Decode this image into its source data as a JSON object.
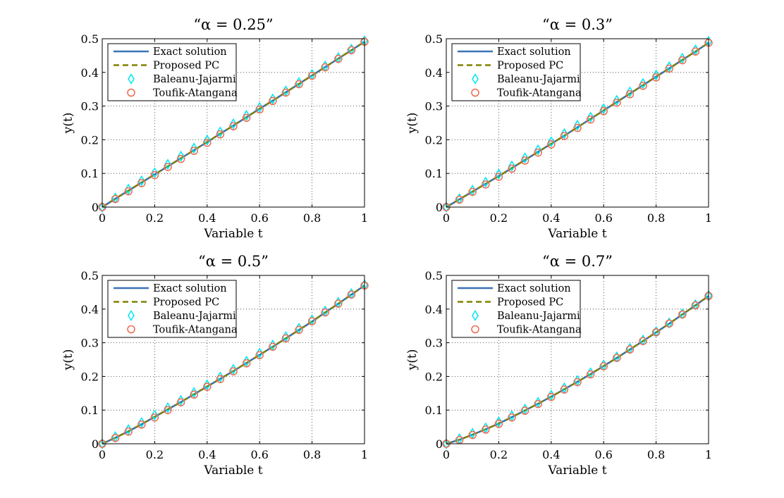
{
  "figure": {
    "legend_entries": [
      "Exact solution",
      "Proposed PC",
      "Baleanu-Jajarmi",
      "Toufik-Atangana"
    ],
    "colors": {
      "exact": "#3b72b6",
      "proposed": "#808000",
      "baleanu": "#00e5ee",
      "toufik": "#ee6a50"
    }
  },
  "chart_data": [
    {
      "type": "line",
      "title": "“α = 0.25”",
      "xlabel": "Variable t",
      "ylabel": "y(t)",
      "xlim": [
        0,
        1
      ],
      "ylim": [
        0,
        0.5
      ],
      "xticks": [
        "0",
        "0.2",
        "0.4",
        "0.6",
        "0.8",
        "1"
      ],
      "yticks": [
        "0",
        "0.1",
        "0.2",
        "0.3",
        "0.4",
        "0.5"
      ],
      "grid": true,
      "legend_position": "top-left",
      "x": [
        0,
        0.05,
        0.1,
        0.15,
        0.2,
        0.25,
        0.3,
        0.35,
        0.4,
        0.45,
        0.5,
        0.55,
        0.6,
        0.65,
        0.7,
        0.75,
        0.8,
        0.85,
        0.9,
        0.95,
        1.0
      ],
      "series": [
        {
          "name": "Exact solution",
          "values": [
            0,
            0.025,
            0.049,
            0.073,
            0.097,
            0.121,
            0.145,
            0.169,
            0.193,
            0.218,
            0.242,
            0.267,
            0.292,
            0.316,
            0.341,
            0.366,
            0.391,
            0.416,
            0.441,
            0.466,
            0.491
          ]
        },
        {
          "name": "Proposed PC",
          "values": [
            0,
            0.025,
            0.049,
            0.073,
            0.097,
            0.121,
            0.145,
            0.169,
            0.193,
            0.218,
            0.242,
            0.267,
            0.292,
            0.316,
            0.341,
            0.366,
            0.391,
            0.416,
            0.441,
            0.466,
            0.491
          ]
        },
        {
          "name": "Baleanu-Jajarmi",
          "values": [
            0,
            0.027,
            0.053,
            0.078,
            0.102,
            0.127,
            0.151,
            0.175,
            0.199,
            0.223,
            0.247,
            0.272,
            0.296,
            0.321,
            0.345,
            0.37,
            0.394,
            0.419,
            0.444,
            0.469,
            0.494
          ]
        },
        {
          "name": "Toufik-Atangana",
          "values": [
            0,
            0.024,
            0.047,
            0.071,
            0.095,
            0.119,
            0.143,
            0.167,
            0.191,
            0.216,
            0.24,
            0.265,
            0.29,
            0.315,
            0.34,
            0.365,
            0.39,
            0.415,
            0.44,
            0.466,
            0.491
          ]
        }
      ]
    },
    {
      "type": "line",
      "title": "“α = 0.3”",
      "xlabel": "Variable t",
      "ylabel": "y(t)",
      "xlim": [
        0,
        1
      ],
      "ylim": [
        0,
        0.5
      ],
      "xticks": [
        "0",
        "0.2",
        "0.4",
        "0.6",
        "0.8",
        "1"
      ],
      "yticks": [
        "0",
        "0.1",
        "0.2",
        "0.3",
        "0.4",
        "0.5"
      ],
      "grid": true,
      "legend_position": "top-left",
      "x": [
        0,
        0.05,
        0.1,
        0.15,
        0.2,
        0.25,
        0.3,
        0.35,
        0.4,
        0.45,
        0.5,
        0.55,
        0.6,
        0.65,
        0.7,
        0.75,
        0.8,
        0.85,
        0.9,
        0.95,
        1.0
      ],
      "series": [
        {
          "name": "Exact solution",
          "values": [
            0,
            0.023,
            0.046,
            0.069,
            0.092,
            0.116,
            0.14,
            0.164,
            0.188,
            0.212,
            0.237,
            0.262,
            0.287,
            0.312,
            0.337,
            0.362,
            0.387,
            0.412,
            0.437,
            0.462,
            0.488
          ]
        },
        {
          "name": "Proposed PC",
          "values": [
            0,
            0.023,
            0.046,
            0.069,
            0.092,
            0.116,
            0.14,
            0.164,
            0.188,
            0.212,
            0.237,
            0.262,
            0.287,
            0.312,
            0.337,
            0.362,
            0.387,
            0.412,
            0.437,
            0.462,
            0.488
          ]
        },
        {
          "name": "Baleanu-Jajarmi",
          "values": [
            0,
            0.025,
            0.05,
            0.074,
            0.098,
            0.122,
            0.146,
            0.17,
            0.194,
            0.218,
            0.243,
            0.267,
            0.292,
            0.317,
            0.342,
            0.367,
            0.392,
            0.417,
            0.442,
            0.467,
            0.492
          ]
        },
        {
          "name": "Toufik-Atangana",
          "values": [
            0,
            0.022,
            0.045,
            0.067,
            0.09,
            0.114,
            0.138,
            0.162,
            0.186,
            0.211,
            0.235,
            0.26,
            0.285,
            0.31,
            0.335,
            0.36,
            0.385,
            0.411,
            0.436,
            0.462,
            0.488
          ]
        }
      ]
    },
    {
      "type": "line",
      "title": "“α = 0.5”",
      "xlabel": "Variable t",
      "ylabel": "y(t)",
      "xlim": [
        0,
        1
      ],
      "ylim": [
        0,
        0.5
      ],
      "xticks": [
        "0",
        "0.2",
        "0.4",
        "0.6",
        "0.8",
        "1"
      ],
      "yticks": [
        "0",
        "0.1",
        "0.2",
        "0.3",
        "0.4",
        "0.5"
      ],
      "grid": true,
      "legend_position": "top-left",
      "x": [
        0,
        0.05,
        0.1,
        0.15,
        0.2,
        0.25,
        0.3,
        0.35,
        0.4,
        0.45,
        0.5,
        0.55,
        0.6,
        0.65,
        0.7,
        0.75,
        0.8,
        0.85,
        0.9,
        0.95,
        1.0
      ],
      "series": [
        {
          "name": "Exact solution",
          "values": [
            0,
            0.018,
            0.037,
            0.058,
            0.08,
            0.102,
            0.124,
            0.147,
            0.17,
            0.193,
            0.216,
            0.24,
            0.264,
            0.288,
            0.313,
            0.338,
            0.363,
            0.39,
            0.416,
            0.443,
            0.47
          ]
        },
        {
          "name": "Proposed PC",
          "values": [
            0,
            0.018,
            0.037,
            0.058,
            0.08,
            0.102,
            0.124,
            0.147,
            0.17,
            0.193,
            0.216,
            0.24,
            0.264,
            0.288,
            0.313,
            0.338,
            0.363,
            0.39,
            0.416,
            0.443,
            0.47
          ]
        },
        {
          "name": "Baleanu-Jajarmi",
          "values": [
            0,
            0.021,
            0.042,
            0.063,
            0.085,
            0.107,
            0.129,
            0.152,
            0.175,
            0.198,
            0.221,
            0.245,
            0.269,
            0.293,
            0.318,
            0.343,
            0.368,
            0.394,
            0.42,
            0.446,
            0.472
          ]
        },
        {
          "name": "Toufik-Atangana",
          "values": [
            0,
            0.017,
            0.036,
            0.057,
            0.078,
            0.1,
            0.123,
            0.146,
            0.169,
            0.192,
            0.215,
            0.239,
            0.263,
            0.288,
            0.313,
            0.338,
            0.364,
            0.39,
            0.416,
            0.443,
            0.47
          ]
        }
      ]
    },
    {
      "type": "line",
      "title": "“α = 0.7”",
      "xlabel": "Variable t",
      "ylabel": "y(t)",
      "xlim": [
        0,
        1
      ],
      "ylim": [
        0,
        0.5
      ],
      "xticks": [
        "0",
        "0.2",
        "0.4",
        "0.6",
        "0.8",
        "1"
      ],
      "yticks": [
        "0",
        "0.1",
        "0.2",
        "0.3",
        "0.4",
        "0.5"
      ],
      "grid": true,
      "legend_position": "top-left",
      "x": [
        0,
        0.05,
        0.1,
        0.15,
        0.2,
        0.25,
        0.3,
        0.35,
        0.4,
        0.45,
        0.5,
        0.55,
        0.6,
        0.65,
        0.7,
        0.75,
        0.8,
        0.85,
        0.9,
        0.95,
        1.0
      ],
      "series": [
        {
          "name": "Exact solution",
          "values": [
            0,
            0.012,
            0.027,
            0.043,
            0.06,
            0.079,
            0.099,
            0.119,
            0.14,
            0.162,
            0.184,
            0.207,
            0.231,
            0.255,
            0.28,
            0.305,
            0.331,
            0.357,
            0.384,
            0.411,
            0.439
          ]
        },
        {
          "name": "Proposed PC",
          "values": [
            0,
            0.012,
            0.027,
            0.043,
            0.06,
            0.079,
            0.099,
            0.119,
            0.14,
            0.162,
            0.184,
            0.207,
            0.231,
            0.255,
            0.28,
            0.305,
            0.331,
            0.357,
            0.384,
            0.411,
            0.439
          ]
        },
        {
          "name": "Baleanu-Jajarmi",
          "values": [
            0,
            0.015,
            0.031,
            0.047,
            0.065,
            0.083,
            0.103,
            0.123,
            0.144,
            0.166,
            0.188,
            0.211,
            0.234,
            0.258,
            0.283,
            0.308,
            0.333,
            0.359,
            0.386,
            0.413,
            0.44
          ]
        },
        {
          "name": "Toufik-Atangana",
          "values": [
            0,
            0.011,
            0.026,
            0.042,
            0.059,
            0.078,
            0.098,
            0.118,
            0.139,
            0.161,
            0.183,
            0.206,
            0.23,
            0.255,
            0.28,
            0.305,
            0.331,
            0.357,
            0.384,
            0.411,
            0.439
          ]
        }
      ]
    }
  ]
}
